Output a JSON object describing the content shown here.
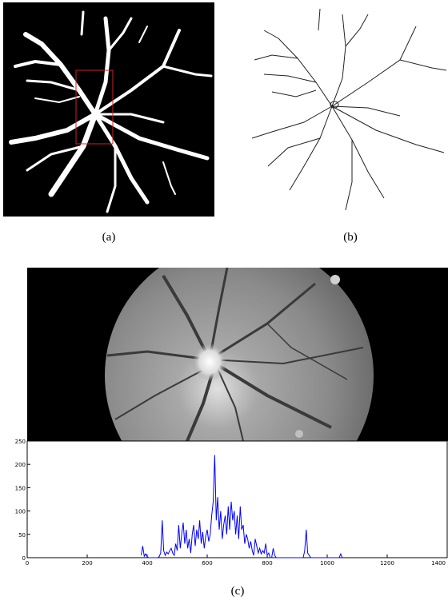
{
  "captions": {
    "a": "(a)",
    "b": "(b)",
    "c": "(c)"
  },
  "colors": {
    "vessel_fill": "#ffffff",
    "vessel_line": "#222222",
    "roi_box": "#d02020",
    "plot_line": "#0000ff"
  },
  "chart_data": {
    "type": "line",
    "title": "",
    "xlabel": "",
    "ylabel": "",
    "xlim": [
      0,
      1400
    ],
    "ylim": [
      0,
      250
    ],
    "xticks": [
      "0",
      "200",
      "400",
      "600",
      "800",
      "1000",
      "1200",
      "1400"
    ],
    "yticks": [
      "0",
      "50",
      "100",
      "150",
      "200",
      "250"
    ],
    "grid": false,
    "series": [
      {
        "x": [
          380,
          385,
          390,
          395,
          400,
          405,
          410,
          415,
          420,
          425,
          430,
          435,
          440,
          445,
          450,
          455,
          460,
          465,
          470,
          475,
          480,
          485,
          490,
          495,
          500,
          505,
          510,
          515,
          520,
          525,
          530,
          535,
          540,
          545,
          550,
          555,
          560,
          565,
          570,
          575,
          580,
          585,
          590,
          595,
          600,
          605,
          610,
          615,
          620,
          625,
          630,
          635,
          640,
          645,
          650,
          655,
          660,
          665,
          670,
          675,
          680,
          685,
          690,
          695,
          700,
          705,
          710,
          715,
          720,
          725,
          730,
          735,
          740,
          745,
          750,
          755,
          760,
          765,
          770,
          775,
          780,
          785,
          790,
          795,
          800,
          805,
          810,
          815,
          820,
          825,
          830,
          835,
          840,
          845,
          850,
          855,
          860,
          865,
          870,
          875,
          880,
          885,
          890,
          895,
          900,
          905,
          910,
          915,
          920,
          925,
          930,
          935,
          940,
          945,
          950,
          1040,
          1045,
          1050
        ],
        "y": [
          5,
          25,
          3,
          8,
          2,
          0,
          0,
          0,
          0,
          0,
          0,
          0,
          2,
          10,
          80,
          15,
          5,
          12,
          8,
          15,
          20,
          10,
          5,
          30,
          15,
          70,
          20,
          50,
          75,
          30,
          60,
          20,
          40,
          10,
          50,
          70,
          25,
          60,
          40,
          80,
          30,
          55,
          20,
          45,
          60,
          35,
          50,
          90,
          120,
          220,
          80,
          130,
          60,
          100,
          40,
          70,
          90,
          50,
          110,
          60,
          120,
          80,
          100,
          50,
          90,
          40,
          110,
          60,
          70,
          30,
          50,
          40,
          20,
          35,
          15,
          5,
          40,
          25,
          10,
          20,
          8,
          15,
          10,
          30,
          5,
          10,
          0,
          0,
          20,
          5,
          0,
          0,
          0,
          0,
          0,
          0,
          0,
          0,
          0,
          0,
          0,
          0,
          0,
          0,
          0,
          0,
          0,
          0,
          0,
          15,
          60,
          10,
          5,
          0,
          0,
          0,
          8,
          0
        ]
      }
    ]
  }
}
